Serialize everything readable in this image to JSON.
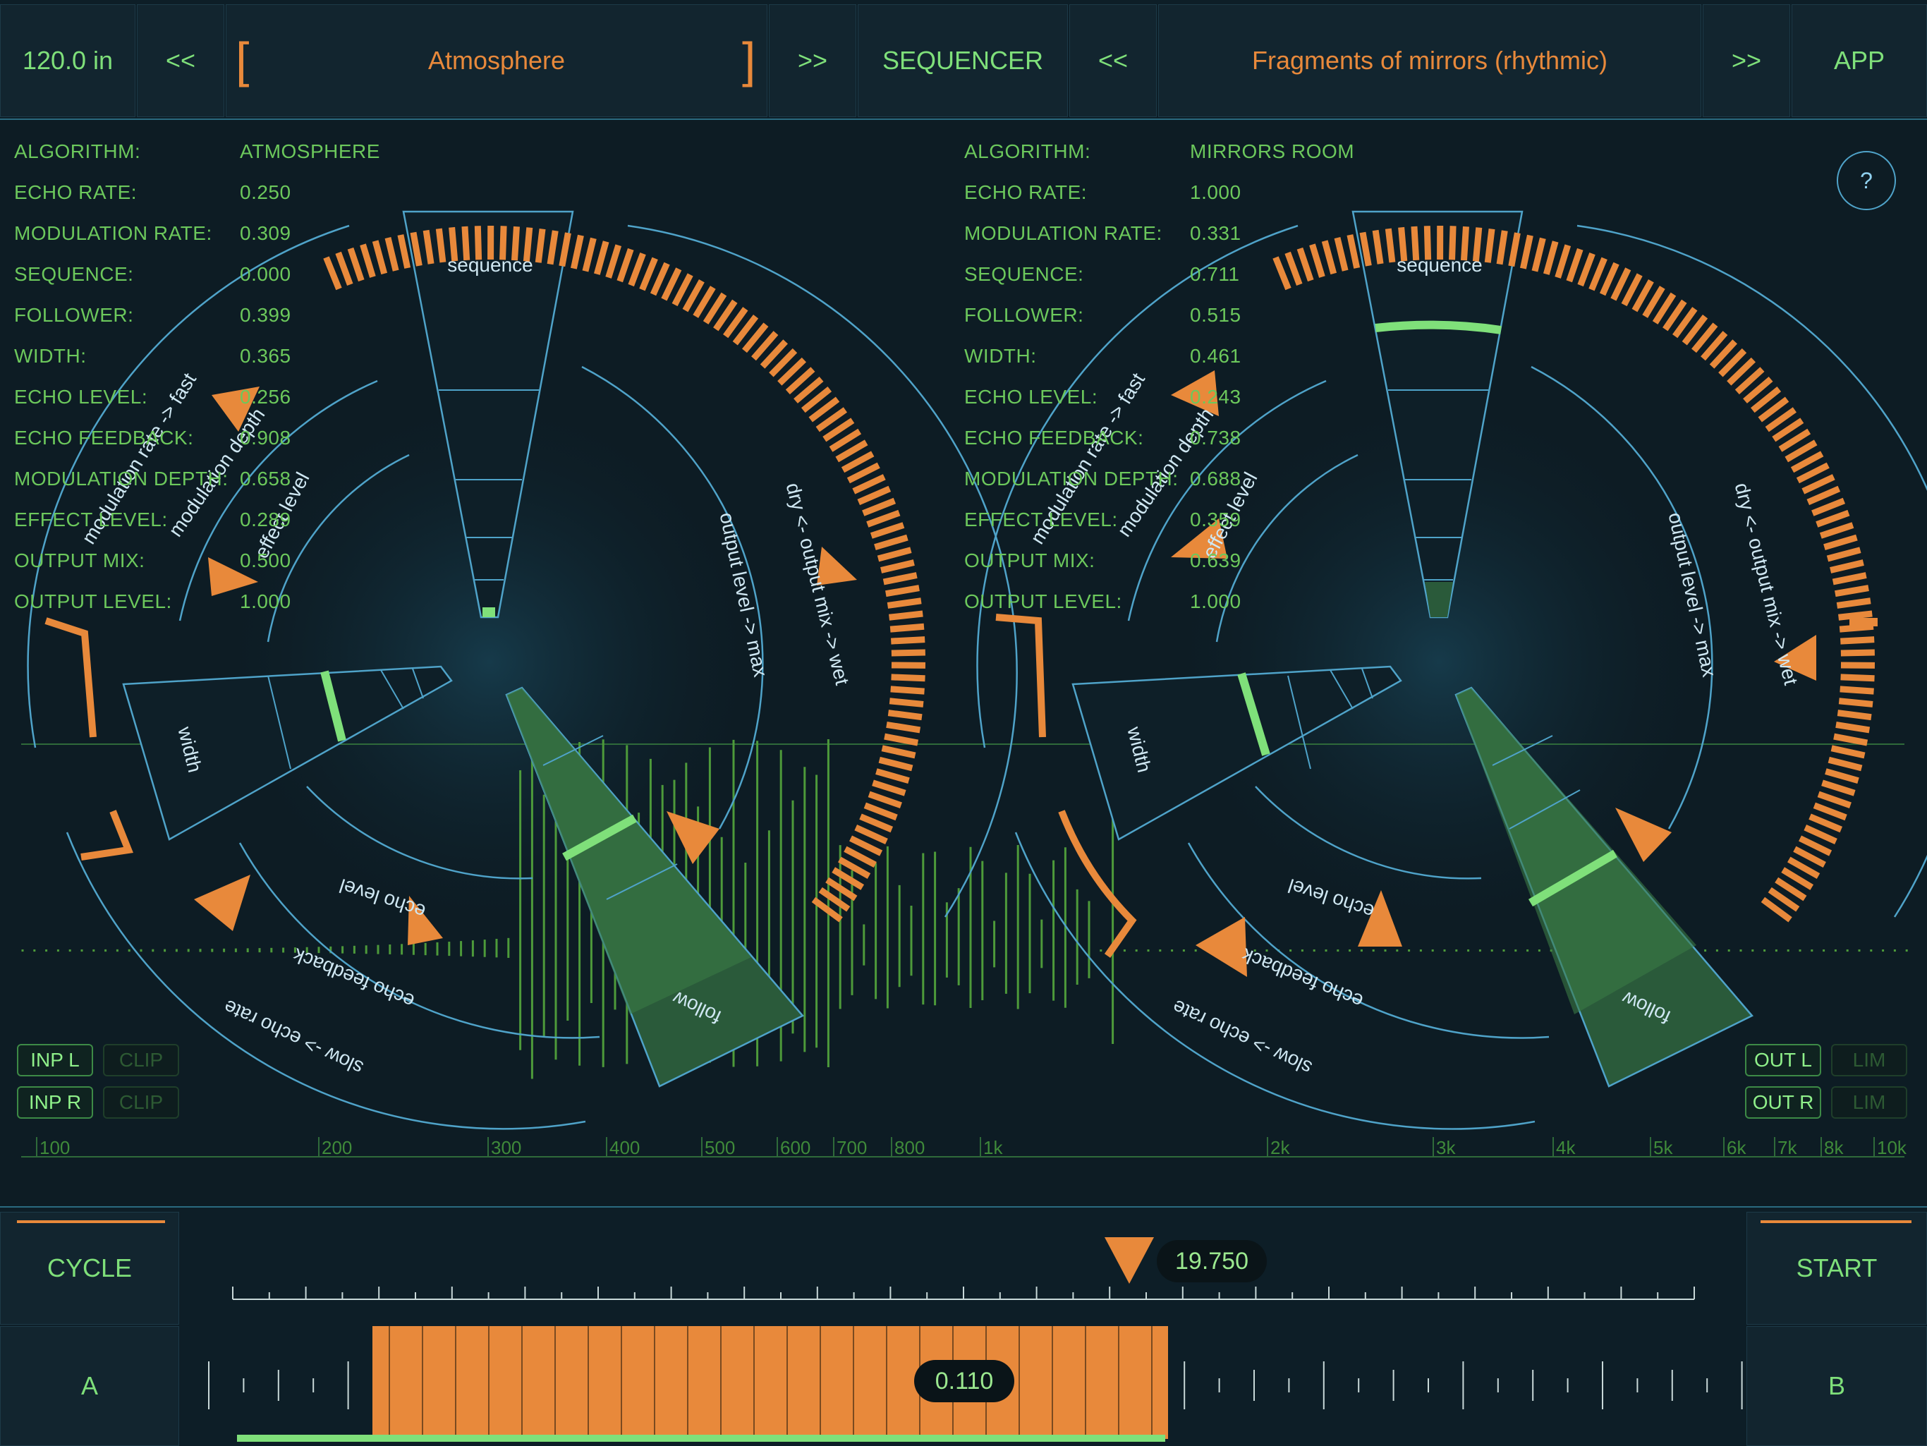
{
  "header": {
    "tempo": "120.0 in",
    "prev_left": "<<",
    "preset_left": "Atmosphere",
    "bracket_open": "[",
    "bracket_close": "]",
    "next_left": ">>",
    "mode": "SEQUENCER",
    "prev_right": "<<",
    "preset_right": "Fragments of mirrors (rhythmic)",
    "next_right": ">>",
    "app": "APP"
  },
  "left_params": [
    {
      "key": "ALGORITHM:",
      "value": "ATMOSPHERE"
    },
    {
      "key": "ECHO RATE:",
      "value": "0.250"
    },
    {
      "key": "MODULATION RATE:",
      "value": "0.309"
    },
    {
      "key": "SEQUENCE:",
      "value": "0.000"
    },
    {
      "key": "FOLLOWER:",
      "value": "0.399"
    },
    {
      "key": "WIDTH:",
      "value": "0.365"
    },
    {
      "key": "ECHO LEVEL:",
      "value": "0.256"
    },
    {
      "key": "ECHO FEEDBACK:",
      "value": "0.908"
    },
    {
      "key": "MODULATION DEPTH:",
      "value": "0.658"
    },
    {
      "key": "EFFECT LEVEL:",
      "value": "0.289"
    },
    {
      "key": "OUTPUT MIX:",
      "value": "0.500"
    },
    {
      "key": "OUTPUT LEVEL:",
      "value": "1.000"
    }
  ],
  "right_params": [
    {
      "key": "ALGORITHM:",
      "value": "MIRRORS ROOM"
    },
    {
      "key": "ECHO RATE:",
      "value": "1.000"
    },
    {
      "key": "MODULATION RATE:",
      "value": "0.331"
    },
    {
      "key": "SEQUENCE:",
      "value": "0.711"
    },
    {
      "key": "FOLLOWER:",
      "value": "0.515"
    },
    {
      "key": "WIDTH:",
      "value": "0.461"
    },
    {
      "key": "ECHO LEVEL:",
      "value": "0.243"
    },
    {
      "key": "ECHO FEEDBACK:",
      "value": "0.738"
    },
    {
      "key": "MODULATION DEPTH:",
      "value": "0.688"
    },
    {
      "key": "EFFECT LEVEL:",
      "value": "0.359"
    },
    {
      "key": "OUTPUT MIX:",
      "value": "0.639"
    },
    {
      "key": "OUTPUT LEVEL:",
      "value": "1.000"
    }
  ],
  "dial_labels": {
    "sequence": "sequence",
    "width": "width",
    "follow": "follow",
    "echo_level": "echo level",
    "echo_feedback": "echo feedback",
    "echo_rate": "slow -> echo rate",
    "mod_rate": "modulation rate -> fast",
    "mod_depth": "modulation depth",
    "effect_level": "effect level",
    "output_level": "output level -> max",
    "output_mix": "dry <- output mix -> wet"
  },
  "meters": {
    "inp_l": "INP L",
    "inp_r": "INP R",
    "clip": "CLIP",
    "out_l": "OUT L",
    "out_r": "OUT R",
    "lim": "LIM"
  },
  "help": "?",
  "freq_axis": [
    "100",
    "200",
    "300",
    "400",
    "500",
    "600",
    "700",
    "800",
    "1k",
    "2k",
    "3k",
    "4k",
    "5k",
    "6k",
    "7k",
    "8k",
    "10k"
  ],
  "bottom": {
    "cycle": "CYCLE",
    "start": "START",
    "a": "A",
    "b": "B",
    "position_value": "19.750",
    "ab_value": "0.110"
  },
  "colors": {
    "accent_orange": "#e8893b",
    "accent_green": "#7fe07a",
    "line_blue": "#4fa3c9",
    "background": "#0d1c24"
  }
}
